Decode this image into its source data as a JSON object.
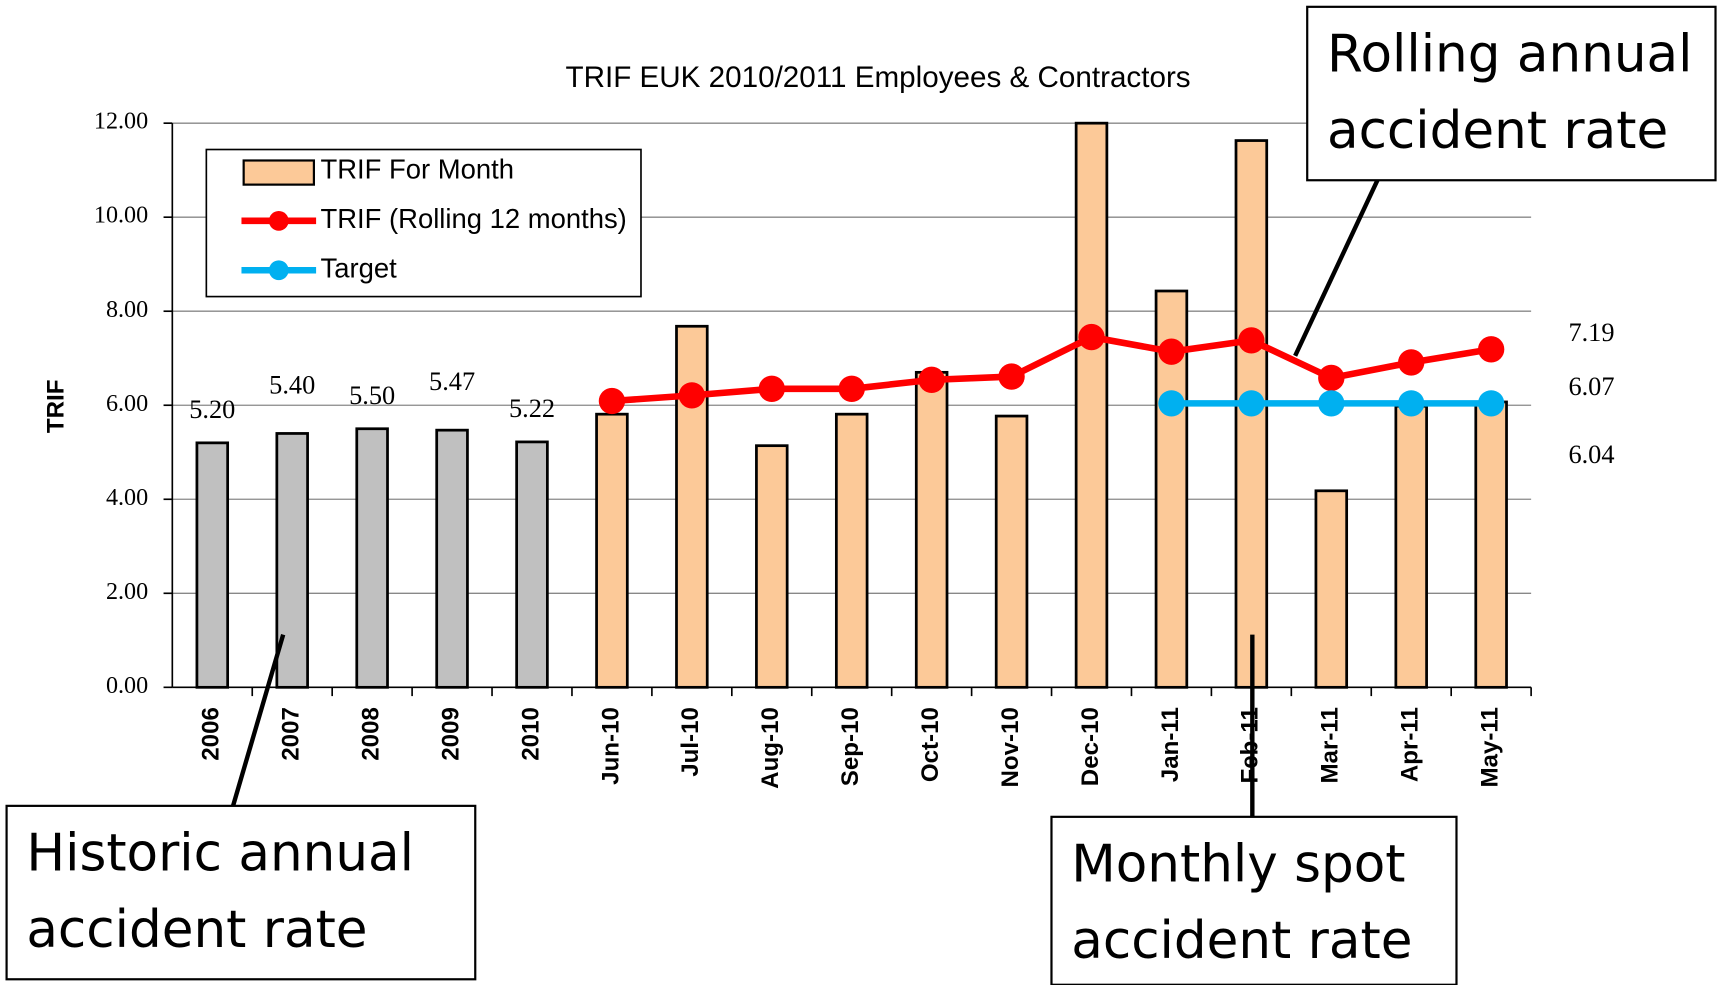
{
  "chart_data": {
    "type": "bar",
    "title": "TRIF EUK 2010/2011 Employees & Contractors",
    "y_label": "TRIF",
    "categories": [
      "2006",
      "2007",
      "2008",
      "2009",
      "2010",
      "Jun-10",
      "Jul-10",
      "Aug-10",
      "Sep-10",
      "Oct-10",
      "Nov-10",
      "Dec-10",
      "Jan-11",
      "Feb-11",
      "Mar-11",
      "Apr-11",
      "May-11"
    ],
    "ylim": [
      0,
      12
    ],
    "yticks": [
      {
        "value": 0,
        "label": "0.00"
      },
      {
        "value": 2,
        "label": "2.00"
      },
      {
        "value": 4,
        "label": "4.00"
      },
      {
        "value": 6,
        "label": "6.00"
      },
      {
        "value": 8,
        "label": "8.00"
      },
      {
        "value": 10,
        "label": "10.00"
      },
      {
        "value": 12,
        "label": "12.00"
      }
    ],
    "grid": true,
    "legend": "upper left",
    "series": [
      {
        "name": "TRIF For Month",
        "type": "bar",
        "color": "#fcc998",
        "colors": [
          "#c0c0c0",
          "#c0c0c0",
          "#c0c0c0",
          "#c0c0c0",
          "#c0c0c0",
          "#fcc998",
          "#fcc998",
          "#fcc998",
          "#fcc998",
          "#fcc998",
          "#fcc998",
          "#fcc998",
          "#fcc998",
          "#fcc998",
          "#fcc998",
          "#fcc998",
          "#fcc998"
        ],
        "values": [
          5.2,
          5.4,
          5.5,
          5.47,
          5.22,
          5.81,
          7.68,
          5.14,
          5.81,
          6.7,
          5.77,
          12,
          8.43,
          11.63,
          4.18,
          5.98,
          6.07
        ],
        "value_labels": [
          "5.20",
          "5.40",
          "5.50",
          "5.47",
          "5.22",
          null,
          null,
          null,
          null,
          null,
          null,
          null,
          null,
          null,
          null,
          null,
          "6.07"
        ]
      },
      {
        "name": "TRIF (Rolling 12 months)",
        "type": "line",
        "color": "#ff0000",
        "values": [
          null,
          null,
          null,
          null,
          null,
          6.09,
          6.21,
          6.35,
          6.35,
          6.54,
          6.61,
          7.45,
          7.14,
          7.38,
          6.58,
          6.91,
          7.19
        ],
        "value_labels": [
          null,
          null,
          null,
          null,
          null,
          null,
          null,
          null,
          null,
          null,
          null,
          null,
          null,
          null,
          null,
          null,
          "7.19"
        ]
      },
      {
        "name": "Target",
        "type": "line",
        "color": "#00b0f0",
        "values": [
          null,
          null,
          null,
          null,
          null,
          null,
          null,
          null,
          null,
          null,
          null,
          null,
          6.04,
          6.04,
          6.04,
          6.04,
          6.04
        ],
        "value_labels": [
          null,
          null,
          null,
          null,
          null,
          null,
          null,
          null,
          null,
          null,
          null,
          null,
          null,
          null,
          null,
          null,
          "6.04"
        ]
      }
    ],
    "annotations": [
      {
        "lines": [
          "Rolling annual",
          "accident rate"
        ]
      },
      {
        "lines": [
          "Historic annual",
          "accident rate"
        ]
      },
      {
        "lines": [
          "Monthly spot",
          "accident rate"
        ]
      }
    ]
  }
}
